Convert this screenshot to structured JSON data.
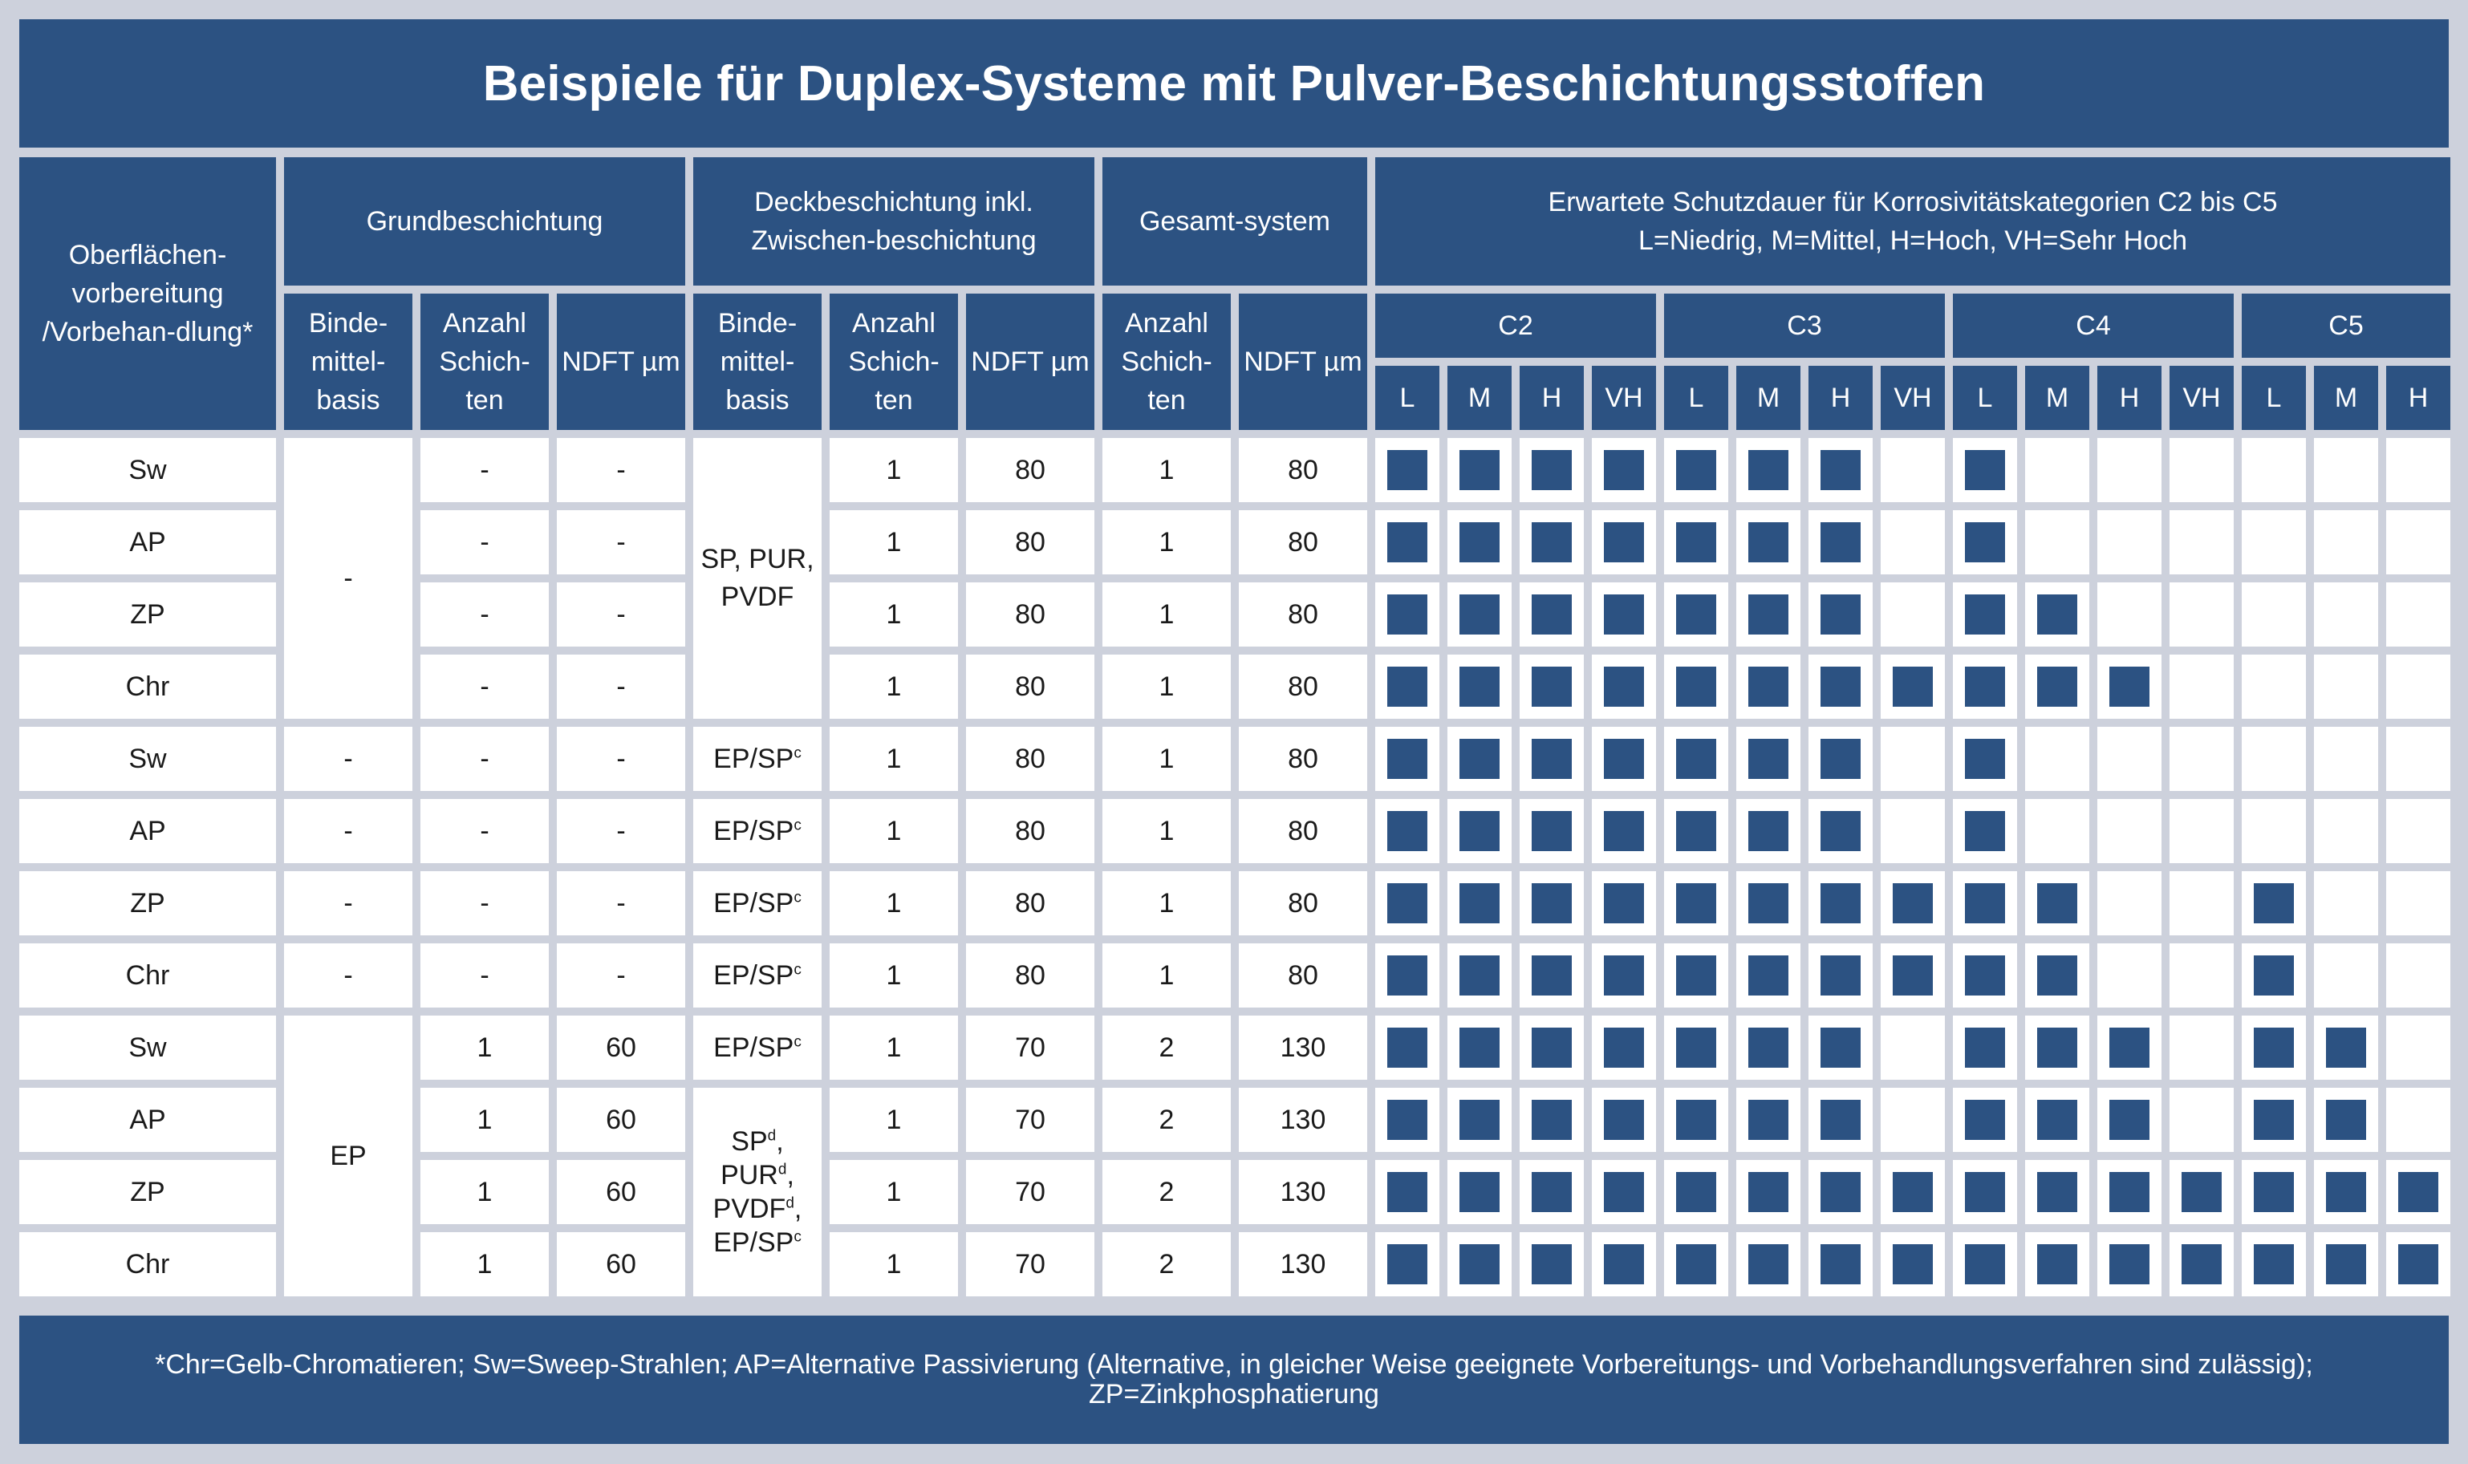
{
  "title": "Beispiele für Duplex-Systeme mit Pulver-Beschichtungsstoffen",
  "colors": {
    "header_bg": "#2c5282",
    "background": "#cdd1dc",
    "cell_bg": "#ffffff",
    "marker": "#2c5282"
  },
  "header": {
    "surface_prep": "Oberflächen-vorbereitung /Vorbehan-dlung*",
    "primer_group": "Grundbeschichtung",
    "topcoat_group": "Deckbeschichtung inkl. Zwischen-beschichtung",
    "total_group": "Gesamt-system",
    "protection_line1": "Erwartete Schutzdauer für Korrosivitätskategorien C2 bis C5",
    "protection_line2": "L=Niedrig, M=Mittel, H=Hoch, VH=Sehr Hoch",
    "binder": "Binde-mittel-basis",
    "layers": "Anzahl Schich-ten",
    "ndft": "NDFT µm",
    "categories": [
      "C2",
      "C3",
      "C4",
      "C5"
    ],
    "levels": [
      "L",
      "M",
      "H",
      "VH",
      "L",
      "M",
      "H",
      "VH",
      "L",
      "M",
      "H",
      "VH",
      "L",
      "M",
      "H"
    ]
  },
  "rows": [
    {
      "prep": "Sw",
      "p_layers": "-",
      "p_ndft": "-",
      "t_layers": "1",
      "t_ndft": "80",
      "g_layers": "1",
      "g_ndft": "80",
      "marks": [
        1,
        1,
        1,
        1,
        1,
        1,
        1,
        0,
        1,
        0,
        0,
        0,
        0,
        0,
        0
      ]
    },
    {
      "prep": "AP",
      "p_layers": "-",
      "p_ndft": "-",
      "t_layers": "1",
      "t_ndft": "80",
      "g_layers": "1",
      "g_ndft": "80",
      "marks": [
        1,
        1,
        1,
        1,
        1,
        1,
        1,
        0,
        1,
        0,
        0,
        0,
        0,
        0,
        0
      ]
    },
    {
      "prep": "ZP",
      "p_layers": "-",
      "p_ndft": "-",
      "t_layers": "1",
      "t_ndft": "80",
      "g_layers": "1",
      "g_ndft": "80",
      "marks": [
        1,
        1,
        1,
        1,
        1,
        1,
        1,
        0,
        1,
        1,
        0,
        0,
        0,
        0,
        0
      ]
    },
    {
      "prep": "Chr",
      "p_layers": "-",
      "p_ndft": "-",
      "t_layers": "1",
      "t_ndft": "80",
      "g_layers": "1",
      "g_ndft": "80",
      "marks": [
        1,
        1,
        1,
        1,
        1,
        1,
        1,
        1,
        1,
        1,
        1,
        0,
        0,
        0,
        0
      ]
    },
    {
      "prep": "Sw",
      "p_binder": "-",
      "p_layers": "-",
      "p_ndft": "-",
      "t_layers": "1",
      "t_ndft": "80",
      "g_layers": "1",
      "g_ndft": "80",
      "marks": [
        1,
        1,
        1,
        1,
        1,
        1,
        1,
        0,
        1,
        0,
        0,
        0,
        0,
        0,
        0
      ]
    },
    {
      "prep": "AP",
      "p_binder": "-",
      "p_layers": "-",
      "p_ndft": "-",
      "t_layers": "1",
      "t_ndft": "80",
      "g_layers": "1",
      "g_ndft": "80",
      "marks": [
        1,
        1,
        1,
        1,
        1,
        1,
        1,
        0,
        1,
        0,
        0,
        0,
        0,
        0,
        0
      ]
    },
    {
      "prep": "ZP",
      "p_binder": "-",
      "p_layers": "-",
      "p_ndft": "-",
      "t_layers": "1",
      "t_ndft": "80",
      "g_layers": "1",
      "g_ndft": "80",
      "marks": [
        1,
        1,
        1,
        1,
        1,
        1,
        1,
        1,
        1,
        1,
        0,
        0,
        1,
        0,
        0
      ]
    },
    {
      "prep": "Chr",
      "p_binder": "-",
      "p_layers": "-",
      "p_ndft": "-",
      "t_layers": "1",
      "t_ndft": "80",
      "g_layers": "1",
      "g_ndft": "80",
      "marks": [
        1,
        1,
        1,
        1,
        1,
        1,
        1,
        1,
        1,
        1,
        0,
        0,
        1,
        0,
        0
      ]
    },
    {
      "prep": "Sw",
      "p_layers": "1",
      "p_ndft": "60",
      "t_layers": "1",
      "t_ndft": "70",
      "g_layers": "2",
      "g_ndft": "130",
      "marks": [
        1,
        1,
        1,
        1,
        1,
        1,
        1,
        0,
        1,
        1,
        1,
        0,
        1,
        1,
        0
      ]
    },
    {
      "prep": "AP",
      "p_layers": "1",
      "p_ndft": "60",
      "t_layers": "1",
      "t_ndft": "70",
      "g_layers": "2",
      "g_ndft": "130",
      "marks": [
        1,
        1,
        1,
        1,
        1,
        1,
        1,
        0,
        1,
        1,
        1,
        0,
        1,
        1,
        0
      ]
    },
    {
      "prep": "ZP",
      "p_layers": "1",
      "p_ndft": "60",
      "t_layers": "1",
      "t_ndft": "70",
      "g_layers": "2",
      "g_ndft": "130",
      "marks": [
        1,
        1,
        1,
        1,
        1,
        1,
        1,
        1,
        1,
        1,
        1,
        1,
        1,
        1,
        1
      ]
    },
    {
      "prep": "Chr",
      "p_layers": "1",
      "p_ndft": "60",
      "t_layers": "1",
      "t_ndft": "70",
      "g_layers": "2",
      "g_ndft": "130",
      "marks": [
        1,
        1,
        1,
        1,
        1,
        1,
        1,
        1,
        1,
        1,
        1,
        1,
        1,
        1,
        1
      ]
    }
  ],
  "merged": {
    "binder_group1": "-",
    "binder_group3": "EP",
    "topcoat_group1_binder": "SP, PUR, PVDF",
    "topcoat_ep_sp_base": "EP/SP",
    "topcoat_ep_sp_sup": "c",
    "topcoat_group3_sp": "SP",
    "topcoat_group3_pur": "PUR",
    "topcoat_group3_pvdf": "PVDF",
    "topcoat_group3_sup_d": "d",
    "topcoat_group3_ep_sp": "EP/SP",
    "topcoat_group3_sup_c": "c"
  },
  "footer": "*Chr=Gelb-Chromatieren; Sw=Sweep-Strahlen; AP=Alternative Passivierung (Alternative, in gleicher Weise geeignete Vorbereitungs- und Vorbehandlungsverfahren sind zulässig); ZP=Zinkphosphatierung"
}
